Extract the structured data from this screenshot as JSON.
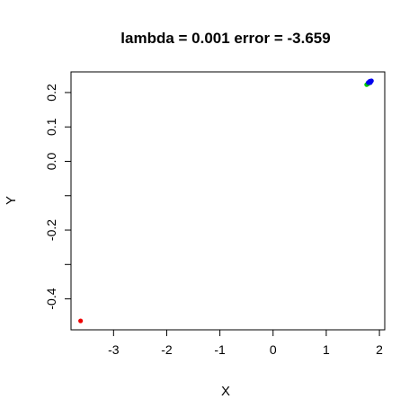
{
  "chart_data": {
    "type": "scatter",
    "title": "lambda = 0.001 error = -3.659",
    "xlabel": "X",
    "ylabel": "Y",
    "xlim": [
      -3.8,
      2.1
    ],
    "ylim": [
      -0.49,
      0.26
    ],
    "x_ticks": [
      -3,
      -2,
      -1,
      0,
      1,
      2
    ],
    "y_ticks": [
      {
        "value": 0.2,
        "label": "0.2"
      },
      {
        "value": 0.1,
        "label": "0.1"
      },
      {
        "value": 0.0,
        "label": "0.0"
      },
      {
        "value": -0.1,
        "label": ""
      },
      {
        "value": -0.2,
        "label": "-0.2"
      },
      {
        "value": -0.3,
        "label": ""
      },
      {
        "value": -0.4,
        "label": "-0.4"
      }
    ],
    "grid": false,
    "points": [
      {
        "x": -3.62,
        "y": -0.464,
        "color": "#ee0000"
      },
      {
        "x": 1.76,
        "y": 0.223,
        "color": "#00cc00"
      },
      {
        "x": 1.78,
        "y": 0.225,
        "color": "#00cc00"
      },
      {
        "x": 1.8,
        "y": 0.227,
        "color": "#00cc00"
      },
      {
        "x": 1.79,
        "y": 0.229,
        "color": "#0000ee"
      },
      {
        "x": 1.81,
        "y": 0.231,
        "color": "#0000ee"
      },
      {
        "x": 1.82,
        "y": 0.233,
        "color": "#0000ee"
      },
      {
        "x": 1.84,
        "y": 0.232,
        "color": "#0000ee"
      },
      {
        "x": 1.83,
        "y": 0.229,
        "color": "#0000ee"
      },
      {
        "x": 1.85,
        "y": 0.234,
        "color": "#0000ee"
      }
    ]
  }
}
